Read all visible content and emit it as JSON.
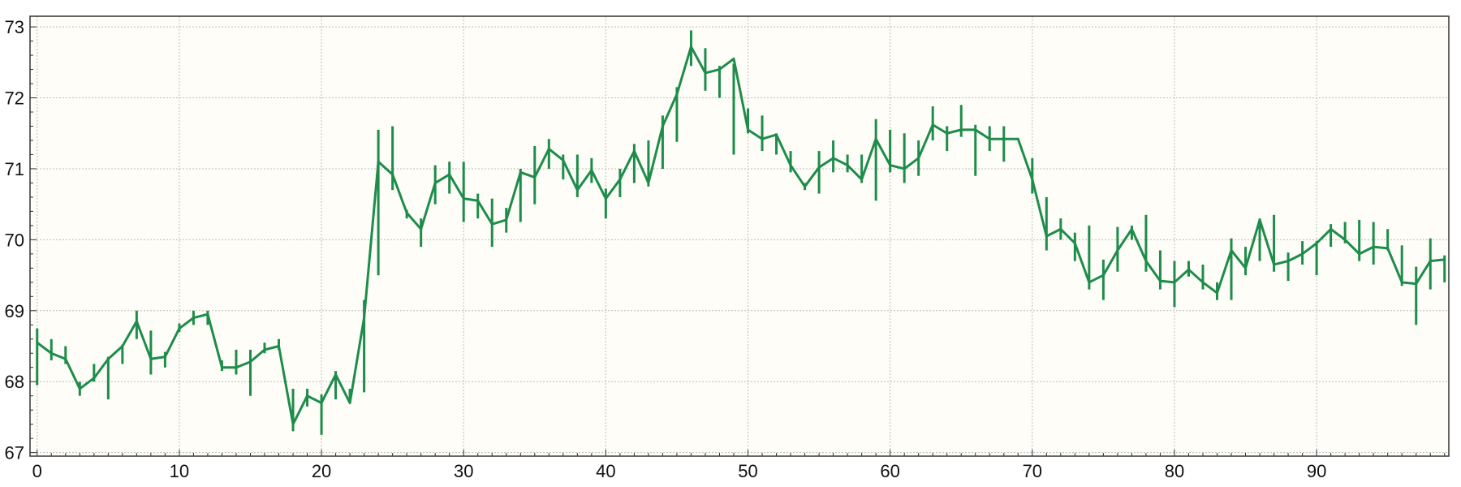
{
  "chart_data": {
    "type": "line",
    "title": "",
    "xlabel": "",
    "ylabel": "",
    "xlim": [
      -0.5,
      99.3
    ],
    "ylim": [
      66.95,
      73.15
    ],
    "x_ticks": [
      0,
      10,
      20,
      30,
      40,
      50,
      60,
      70,
      80,
      90
    ],
    "y_ticks": [
      67,
      68,
      69,
      70,
      71,
      72,
      73
    ],
    "grid": true,
    "legend": "none",
    "colors": {
      "line": "#1e8c4a",
      "plot_bg": "#fefdf7",
      "grid": "#bdbdbd",
      "axis": "#333333"
    },
    "series": [
      {
        "x": [
          0,
          1,
          2,
          3,
          4,
          5,
          6,
          7,
          8,
          9,
          10,
          11,
          12,
          13,
          14,
          15,
          16,
          17,
          18,
          19,
          20,
          21,
          22,
          23,
          24,
          25,
          26,
          27,
          28,
          29,
          30,
          31,
          32,
          33,
          34,
          35,
          36,
          37,
          38,
          39,
          40,
          41,
          42,
          43,
          44,
          45,
          46,
          47,
          48,
          49,
          50,
          51,
          52,
          53,
          54,
          55,
          56,
          57,
          58,
          59,
          60,
          61,
          62,
          63,
          64,
          65,
          66,
          67,
          68,
          69,
          70,
          71,
          72,
          73,
          74,
          75,
          76,
          77,
          78,
          79,
          80,
          81,
          82,
          83,
          84,
          85,
          86,
          87,
          88,
          89,
          90,
          91,
          92,
          93,
          94,
          95,
          96,
          97,
          98,
          99
        ],
        "values": [
          68.55,
          68.4,
          68.32,
          67.9,
          68.05,
          68.32,
          68.5,
          68.85,
          68.32,
          68.35,
          68.75,
          68.9,
          68.95,
          68.2,
          68.2,
          68.28,
          68.45,
          68.5,
          67.4,
          67.8,
          67.7,
          68.1,
          67.7,
          68.9,
          71.1,
          70.92,
          70.38,
          70.15,
          70.8,
          70.92,
          70.58,
          70.55,
          70.22,
          70.28,
          70.95,
          70.88,
          71.28,
          71.12,
          70.7,
          70.98,
          70.58,
          70.85,
          71.25,
          70.8,
          71.6,
          72.05,
          72.72,
          72.35,
          72.4,
          72.55,
          71.55,
          71.42,
          71.48,
          71.05,
          70.75,
          71.02,
          71.15,
          71.05,
          70.85,
          71.42,
          71.05,
          71.0,
          71.15,
          71.62,
          71.5,
          71.55,
          71.55,
          71.42,
          71.42,
          71.42,
          70.85,
          70.05,
          70.15,
          69.95,
          69.4,
          69.5,
          69.85,
          70.15,
          69.7,
          69.42,
          69.4,
          69.58,
          69.4,
          69.25,
          69.85,
          69.6,
          70.28,
          69.65,
          69.7,
          69.8,
          69.95,
          70.15,
          70.0,
          69.8,
          69.9,
          69.88,
          69.4,
          69.38,
          69.7,
          69.72
        ],
        "error_low": [
          67.95,
          68.3,
          68.25,
          67.8,
          68.0,
          67.75,
          68.25,
          68.6,
          68.1,
          68.2,
          68.7,
          68.8,
          68.8,
          68.15,
          68.1,
          67.8,
          68.4,
          68.45,
          67.3,
          67.65,
          67.25,
          67.75,
          67.7,
          67.85,
          69.5,
          70.7,
          70.3,
          69.9,
          70.5,
          70.65,
          70.25,
          70.3,
          69.9,
          70.1,
          70.25,
          70.5,
          71.0,
          70.85,
          70.6,
          70.8,
          70.3,
          70.6,
          70.8,
          70.75,
          71.0,
          71.38,
          72.45,
          72.1,
          72.0,
          71.2,
          71.5,
          71.25,
          71.2,
          70.95,
          70.7,
          70.65,
          70.95,
          70.95,
          70.8,
          70.55,
          70.95,
          70.8,
          70.9,
          71.4,
          71.25,
          71.45,
          70.9,
          71.25,
          71.1,
          71.42,
          70.65,
          69.85,
          70.0,
          69.7,
          69.3,
          69.15,
          69.55,
          70.0,
          69.55,
          69.3,
          69.05,
          69.48,
          69.3,
          69.15,
          69.15,
          69.5,
          69.7,
          69.55,
          69.42,
          69.65,
          69.5,
          69.9,
          69.95,
          69.7,
          69.65,
          69.85,
          69.35,
          68.8,
          69.3,
          69.4
        ],
        "error_high": [
          68.75,
          68.6,
          68.5,
          68.0,
          68.25,
          68.35,
          68.52,
          69.0,
          68.72,
          68.42,
          68.82,
          69.0,
          69.0,
          68.3,
          68.45,
          68.45,
          68.55,
          68.6,
          67.9,
          67.9,
          67.82,
          68.15,
          67.9,
          69.15,
          71.55,
          71.6,
          70.42,
          70.3,
          71.05,
          71.1,
          71.1,
          70.65,
          70.58,
          70.45,
          71.0,
          71.32,
          71.42,
          71.2,
          71.2,
          71.15,
          70.72,
          71.0,
          71.35,
          71.4,
          71.75,
          72.15,
          72.95,
          72.7,
          72.45,
          72.48,
          71.85,
          71.75,
          71.5,
          71.25,
          70.8,
          71.25,
          71.4,
          71.2,
          71.2,
          71.7,
          71.55,
          71.5,
          71.4,
          71.88,
          71.6,
          71.9,
          71.62,
          71.6,
          71.6,
          71.42,
          71.15,
          70.6,
          70.3,
          70.1,
          70.2,
          69.72,
          70.18,
          70.2,
          70.35,
          69.85,
          69.7,
          69.7,
          69.65,
          69.4,
          70.02,
          69.9,
          70.3,
          70.35,
          69.82,
          69.98,
          69.98,
          70.22,
          70.25,
          70.28,
          70.25,
          70.15,
          69.92,
          69.62,
          70.02,
          69.78
        ]
      }
    ]
  }
}
